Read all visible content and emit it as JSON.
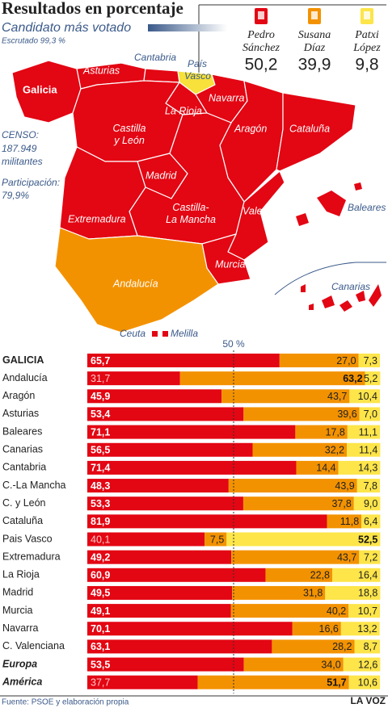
{
  "header": {
    "title": "Resultados en porcentaje",
    "subtitle": "Candidato más votado",
    "scrutiny": "Escrutado 99,3 %",
    "candidates": [
      {
        "first": "Pedro",
        "last": "Sánchez",
        "total": "50,2"
      },
      {
        "first": "Susana",
        "last": "Díaz",
        "total": "39,9"
      },
      {
        "first": "Patxi",
        "last": "López",
        "total": "9,8"
      }
    ]
  },
  "map": {
    "labels": [
      "Galicia",
      "Asturias",
      "Cantabria",
      [
        "País",
        "Vasco"
      ],
      "Navarra",
      "La Rioja",
      [
        "Castilla",
        "y León"
      ],
      "Aragón",
      "Cataluña",
      "Madrid",
      [
        "Castilla-",
        "La Mancha"
      ],
      "Extremadura",
      "Valencia",
      "Murcia",
      "Andalucía",
      "Baleares",
      "Canarias",
      "Ceuta",
      "Melilla"
    ],
    "census": [
      "CENSO:",
      "187.949",
      "militantes"
    ],
    "participation": [
      "Participación:",
      "79,9%"
    ]
  },
  "chart_data": {
    "type": "stacked-bar",
    "categories": [
      "GALICIA",
      "Andalucía",
      "Aragón",
      "Asturias",
      "Baleares",
      "Canarias",
      "Cantabria",
      "C.-La Mancha",
      "C. y León",
      "Cataluña",
      "Pais Vasco",
      "Extremadura",
      "La Rioja",
      "Madrid",
      "Murcia",
      "Navarra",
      "C. Valenciana",
      "Europa",
      "América"
    ],
    "xlim": [
      0,
      100
    ],
    "reference": {
      "value": 50,
      "label": "50 %"
    },
    "series": [
      {
        "color": "#e30613",
        "values": [
          65.7,
          31.7,
          45.9,
          53.4,
          71.1,
          56.5,
          71.4,
          48.3,
          53.3,
          81.9,
          40.1,
          49.2,
          60.9,
          49.5,
          49.1,
          70.1,
          63.1,
          53.5,
          37.7
        ],
        "value_labels": [
          "65,7",
          "31,7",
          "45,9",
          "53,4",
          "71,1",
          "56,5",
          "71,4",
          "48,3",
          "53,3",
          "81,9",
          "40,1",
          "49,2",
          "60,9",
          "49,5",
          "49,1",
          "70,1",
          "63,1",
          "53,5",
          "37,7"
        ]
      },
      {
        "color": "#f39200",
        "values": [
          27.0,
          63.2,
          43.7,
          39.6,
          17.8,
          32.2,
          14.4,
          43.9,
          37.8,
          11.8,
          7.5,
          43.7,
          22.8,
          31.8,
          40.2,
          16.6,
          28.2,
          34.0,
          51.7
        ],
        "value_labels": [
          "27,0",
          "63,2",
          "43,7",
          "39,6",
          "17,8",
          "32,2",
          "14,4",
          "43,9",
          "37,8",
          "11,8",
          "7,5",
          "43,7",
          "22,8",
          "31,8",
          "40,2",
          "16,6",
          "28,2",
          "34,0",
          "51,7"
        ]
      },
      {
        "color": "#fde54a",
        "values": [
          7.3,
          5.2,
          10.4,
          7.0,
          11.1,
          11.4,
          14.3,
          7.8,
          9.0,
          6.4,
          52.5,
          7.2,
          16.4,
          18.8,
          10.7,
          13.2,
          8.7,
          12.6,
          10.6
        ],
        "value_labels": [
          "7,3",
          "5,2",
          "10,4",
          "7,0",
          "11,1",
          "11,4",
          "14,3",
          "7,8",
          "9,0",
          "6,4",
          "52,5",
          "7,2",
          "16,4",
          "18,8",
          "10,7",
          "13,2",
          "8,7",
          "12,6",
          "10,6"
        ]
      }
    ]
  },
  "footer": {
    "source": "Fuente: PSOE y elaboración propia",
    "brand": "LA VOZ"
  }
}
